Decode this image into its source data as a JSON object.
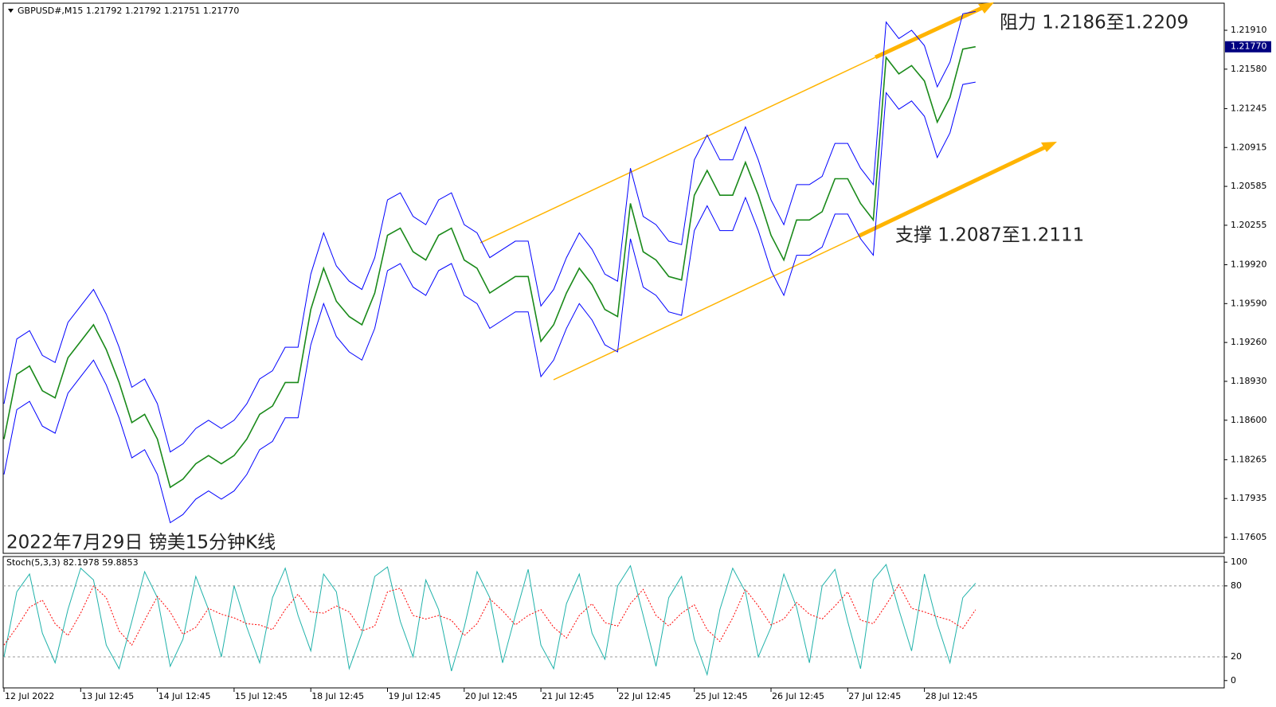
{
  "header": "GBPUSD#,M15  1.21792 1.21792 1.21751 1.21770",
  "chart_data": [
    {
      "type": "line",
      "title": "2022年7月29日 镑美15分钟K线",
      "annotations": [
        "阻力 1.2186至1.2209",
        "支撑 1.2087至1.2111"
      ],
      "categories": [
        "12 Jul 2022",
        null,
        null,
        null,
        null,
        null,
        "13 Jul 12:45",
        null,
        null,
        null,
        null,
        null,
        "14 Jul 12:45",
        null,
        null,
        null,
        null,
        null,
        "15 Jul 12:45",
        null,
        null,
        null,
        null,
        null,
        "18 Jul 12:45",
        null,
        null,
        null,
        null,
        null,
        "19 Jul 12:45",
        null,
        null,
        null,
        null,
        null,
        "20 Jul 12:45",
        null,
        null,
        null,
        null,
        null,
        "21 Jul 12:45",
        null,
        null,
        null,
        null,
        null,
        "22 Jul 12:45",
        null,
        null,
        null,
        null,
        null,
        "25 Jul 12:45",
        null,
        null,
        null,
        null,
        null,
        "26 Jul 12:45",
        null,
        null,
        null,
        null,
        null,
        "27 Jul 12:45",
        null,
        null,
        null,
        null,
        null,
        "28 Jul 12:45",
        null,
        null,
        null,
        null
      ],
      "series": [
        {
          "color": "#1a8a1a",
          "values": [
            1.1844,
            1.1899,
            1.1906,
            1.1885,
            1.1879,
            1.1913,
            1.1927,
            1.1941,
            1.192,
            1.1892,
            1.1858,
            1.1865,
            1.1844,
            1.1803,
            1.181,
            1.1823,
            1.183,
            1.1823,
            1.183,
            1.1844,
            1.1865,
            1.1872,
            1.1892,
            1.1892,
            1.1954,
            1.1989,
            1.1961,
            1.1948,
            1.1941,
            1.1968,
            1.2017,
            1.2023,
            1.2003,
            1.1996,
            1.2017,
            1.2023,
            1.1996,
            1.1989,
            1.1968,
            1.1975,
            1.1982,
            1.1982,
            1.1927,
            1.1941,
            1.1968,
            1.1989,
            1.1975,
            1.1954,
            1.1948,
            1.2044,
            1.2003,
            1.1996,
            1.1982,
            1.1979,
            1.2051,
            1.2072,
            1.2051,
            1.2051,
            1.2079,
            1.2051,
            1.2017,
            1.1996,
            1.203,
            1.203,
            1.2037,
            1.2065,
            1.2065,
            1.2044,
            1.203,
            1.2168,
            1.2154,
            1.2161,
            1.2148,
            1.2113,
            1.2134,
            1.2175,
            1.2177
          ]
        },
        {
          "color": "#0000ff",
          "values": [
            1.1874,
            1.1929,
            1.1936,
            1.1915,
            1.1909,
            1.1943,
            1.1957,
            1.1971,
            1.195,
            1.1922,
            1.1888,
            1.1895,
            1.1874,
            1.1833,
            1.184,
            1.1853,
            1.186,
            1.1853,
            1.186,
            1.1874,
            1.1895,
            1.1902,
            1.1922,
            1.1922,
            1.1984,
            1.2019,
            1.1991,
            1.1978,
            1.1971,
            1.1998,
            1.2047,
            1.2053,
            1.2033,
            1.2026,
            1.2047,
            1.2053,
            1.2026,
            1.2019,
            1.1998,
            1.2005,
            1.2012,
            1.2012,
            1.1957,
            1.1971,
            1.1998,
            1.2019,
            1.2005,
            1.1984,
            1.1978,
            1.2074,
            1.2033,
            1.2026,
            1.2012,
            1.2009,
            1.2081,
            1.2102,
            1.2081,
            1.2081,
            1.2109,
            1.2081,
            1.2047,
            1.2026,
            1.206,
            1.206,
            1.2067,
            1.2095,
            1.2095,
            1.2074,
            1.206,
            1.2198,
            1.2184,
            1.2191,
            1.2178,
            1.2143,
            1.2164,
            1.2205,
            1.2207
          ]
        },
        {
          "color": "#0000ff",
          "values": [
            1.1814,
            1.1869,
            1.1876,
            1.1855,
            1.1849,
            1.1883,
            1.1897,
            1.1911,
            1.189,
            1.1862,
            1.1828,
            1.1835,
            1.1814,
            1.1773,
            1.178,
            1.1793,
            1.18,
            1.1793,
            1.18,
            1.1814,
            1.1835,
            1.1842,
            1.1862,
            1.1862,
            1.1924,
            1.1959,
            1.1931,
            1.1918,
            1.1911,
            1.1938,
            1.1987,
            1.1993,
            1.1973,
            1.1966,
            1.1987,
            1.1993,
            1.1966,
            1.1959,
            1.1938,
            1.1945,
            1.1952,
            1.1952,
            1.1897,
            1.1911,
            1.1938,
            1.1959,
            1.1945,
            1.1924,
            1.1918,
            1.2014,
            1.1973,
            1.1966,
            1.1952,
            1.1949,
            1.2021,
            1.2042,
            1.2021,
            1.2021,
            1.2049,
            1.2021,
            1.1987,
            1.1966,
            1.2,
            1.2,
            1.2007,
            1.2035,
            1.2035,
            1.2014,
            1.2,
            1.2138,
            1.2124,
            1.2131,
            1.2118,
            1.2083,
            1.2104,
            1.2145,
            1.2147
          ]
        }
      ],
      "ylim": [
        1.1747,
        1.2214
      ],
      "yticks": [
        {
          "value": 1.2191,
          "label": "1.21910"
        },
        {
          "value": 1.2158,
          "label": "1.21580"
        },
        {
          "value": 1.21245,
          "label": "1.21245"
        },
        {
          "value": 1.20915,
          "label": "1.20915"
        },
        {
          "value": 1.20585,
          "label": "1.20585"
        },
        {
          "value": 1.20255,
          "label": "1.20255"
        },
        {
          "value": 1.1992,
          "label": "1.19920"
        },
        {
          "value": 1.1959,
          "label": "1.19590"
        },
        {
          "value": 1.1926,
          "label": "1.19260"
        },
        {
          "value": 1.1893,
          "label": "1.18930"
        },
        {
          "value": 1.186,
          "label": "1.18600"
        },
        {
          "value": 1.18265,
          "label": "1.18265"
        },
        {
          "value": 1.17935,
          "label": "1.17935"
        },
        {
          "value": 1.17605,
          "label": "1.17605"
        }
      ],
      "current_price": {
        "value": 1.2177,
        "label": "1.21770"
      },
      "grid": false
    },
    {
      "type": "line",
      "title": "Stoch(5,3,3) 82.1978 59.8853",
      "series": [
        {
          "color": "#20b2aa",
          "values": [
            20,
            75,
            90,
            40,
            15,
            60,
            95,
            85,
            30,
            10,
            50,
            92,
            70,
            12,
            35,
            88,
            60,
            20,
            80,
            45,
            15,
            70,
            95,
            55,
            25,
            90,
            75,
            10,
            40,
            88,
            96,
            50,
            20,
            85,
            60,
            8,
            45,
            92,
            70,
            15,
            55,
            94,
            30,
            10,
            65,
            90,
            40,
            18,
            80,
            97,
            55,
            12,
            70,
            88,
            35,
            5,
            60,
            95,
            75,
            20,
            45,
            90,
            62,
            15,
            80,
            94,
            50,
            10,
            85,
            98,
            60,
            25,
            90,
            48,
            15,
            70,
            82.1978
          ]
        },
        {
          "color": "#ff0000",
          "dashed": true,
          "values": [
            30,
            45,
            62,
            68,
            48,
            38,
            57,
            80,
            70,
            42,
            30,
            51,
            71,
            58,
            39,
            45,
            61,
            56,
            53,
            48,
            47,
            43,
            60,
            73,
            58,
            57,
            63,
            58,
            42,
            46,
            75,
            78,
            55,
            52,
            55,
            51,
            38,
            48,
            69,
            59,
            47,
            55,
            60,
            45,
            36,
            55,
            65,
            49,
            46,
            65,
            77,
            55,
            46,
            57,
            64,
            43,
            33,
            53,
            77,
            63,
            47,
            52,
            66,
            56,
            52,
            63,
            75,
            51,
            48,
            64,
            81,
            61,
            58,
            54,
            51,
            44,
            59.8853
          ]
        }
      ],
      "ylim": [
        -6.2,
        104.8
      ],
      "yticks": [
        100,
        80,
        20,
        0
      ],
      "levels": [
        20,
        80
      ]
    }
  ]
}
